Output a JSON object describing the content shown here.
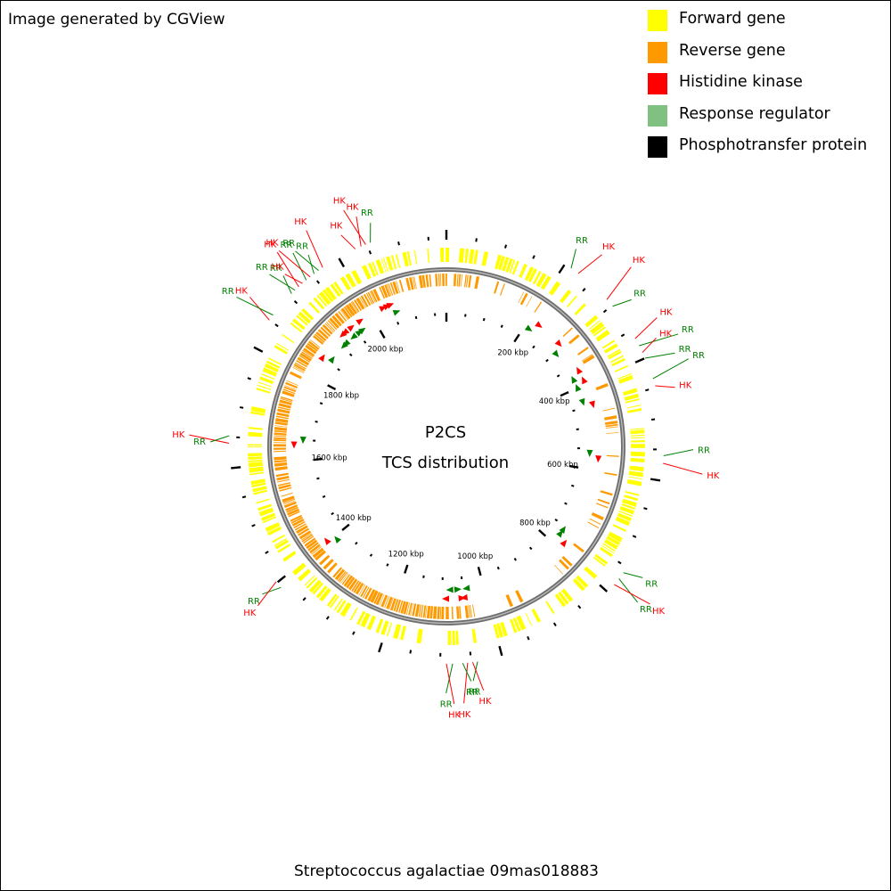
{
  "credit": "Image generated by CGView",
  "legend": [
    {
      "label": "Forward gene",
      "color": "#ffff00"
    },
    {
      "label": "Reverse gene",
      "color": "#ff9900"
    },
    {
      "label": "Histidine kinase",
      "color": "#ff0000"
    },
    {
      "label": "Response regulator",
      "color": "#80c080"
    },
    {
      "label": "Phosphotransfer protein",
      "color": "#000000"
    }
  ],
  "map": {
    "title_line1": "P2CS",
    "title_line2": "TCS distribution",
    "organism": "Streptococcus agalactiae 09mas018883",
    "genome_length_kbp": 2180,
    "tick_labels": [
      {
        "kbp": 200,
        "label": "200 kbp"
      },
      {
        "kbp": 400,
        "label": "400 kbp"
      },
      {
        "kbp": 600,
        "label": "600 kbp"
      },
      {
        "kbp": 800,
        "label": "800 kbp"
      },
      {
        "kbp": 1000,
        "label": "1000 kbp"
      },
      {
        "kbp": 1200,
        "label": "1200 kbp"
      },
      {
        "kbp": 1400,
        "label": "1400 kbp"
      },
      {
        "kbp": 1600,
        "label": "1600 kbp"
      },
      {
        "kbp": 1800,
        "label": "1800 kbp"
      },
      {
        "kbp": 2000,
        "label": "2000 kbp"
      }
    ],
    "features": [
      {
        "kbp": 212,
        "type": "RR",
        "strand": "forward"
      },
      {
        "kbp": 226,
        "type": "HK",
        "strand": "forward"
      },
      {
        "kbp": 288,
        "type": "HK",
        "strand": "forward"
      },
      {
        "kbp": 302,
        "type": "RR",
        "strand": "forward"
      },
      {
        "kbp": 365,
        "type": "HK",
        "strand": "reverse"
      },
      {
        "kbp": 378,
        "type": "RR",
        "strand": "reverse"
      },
      {
        "kbp": 390,
        "type": "HK",
        "strand": "reverse"
      },
      {
        "kbp": 400,
        "type": "RR",
        "strand": "reverse"
      },
      {
        "kbp": 435,
        "type": "RR",
        "strand": "forward"
      },
      {
        "kbp": 447,
        "type": "HK",
        "strand": "forward"
      },
      {
        "kbp": 560,
        "type": "RR",
        "strand": "forward"
      },
      {
        "kbp": 572,
        "type": "HK",
        "strand": "forward"
      },
      {
        "kbp": 760,
        "type": "RR",
        "strand": "reverse"
      },
      {
        "kbp": 772,
        "type": "RR",
        "strand": "reverse"
      },
      {
        "kbp": 784,
        "type": "HK",
        "strand": "reverse"
      },
      {
        "kbp": 1040,
        "type": "RR",
        "strand": "forward"
      },
      {
        "kbp": 1048,
        "type": "HK",
        "strand": "forward"
      },
      {
        "kbp": 1056,
        "type": "HK",
        "strand": "reverse"
      },
      {
        "kbp": 1064,
        "type": "RR",
        "strand": "reverse"
      },
      {
        "kbp": 1080,
        "type": "RR",
        "strand": "forward"
      },
      {
        "kbp": 1090,
        "type": "HK",
        "strand": "forward"
      },
      {
        "kbp": 1390,
        "type": "RR",
        "strand": "forward"
      },
      {
        "kbp": 1402,
        "type": "HK",
        "strand": "forward"
      },
      {
        "kbp": 1640,
        "type": "HK",
        "strand": "reverse"
      },
      {
        "kbp": 1652,
        "type": "RR",
        "strand": "reverse"
      },
      {
        "kbp": 1850,
        "type": "HK",
        "strand": "forward"
      },
      {
        "kbp": 1860,
        "type": "RR",
        "strand": "forward"
      },
      {
        "kbp": 1905,
        "type": "RR",
        "strand": "reverse"
      },
      {
        "kbp": 1913,
        "type": "RR",
        "strand": "reverse"
      },
      {
        "kbp": 1921,
        "type": "HK",
        "strand": "reverse"
      },
      {
        "kbp": 1929,
        "type": "HK",
        "strand": "reverse"
      },
      {
        "kbp": 1937,
        "type": "RR",
        "strand": "reverse"
      },
      {
        "kbp": 1945,
        "type": "HK",
        "strand": "forward"
      },
      {
        "kbp": 1953,
        "type": "RR",
        "strand": "forward"
      },
      {
        "kbp": 1962,
        "type": "RR",
        "strand": "forward"
      },
      {
        "kbp": 1970,
        "type": "HK",
        "strand": "forward"
      },
      {
        "kbp": 2030,
        "type": "HK",
        "strand": "forward"
      },
      {
        "kbp": 2040,
        "type": "HK",
        "strand": "forward"
      },
      {
        "kbp": 2048,
        "type": "HK",
        "strand": "forward"
      },
      {
        "kbp": 2056,
        "type": "RR",
        "strand": "forward"
      }
    ]
  }
}
